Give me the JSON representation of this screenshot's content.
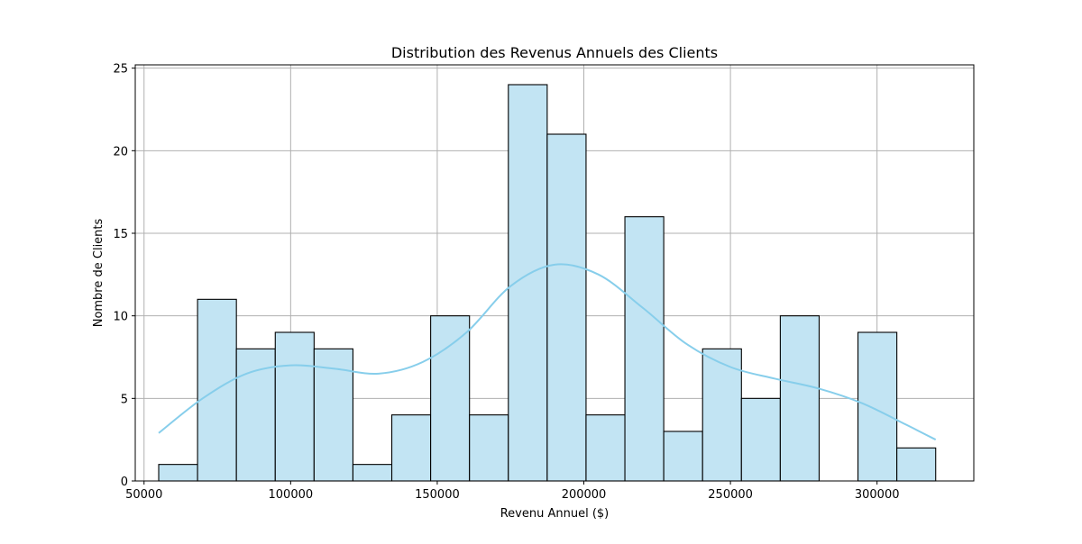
{
  "chart_data": {
    "type": "bar",
    "subtype": "histogram",
    "title": "Distribution des Revenus Annuels des Clients",
    "xlabel": "Revenu Annuel ($)",
    "ylabel": "Nombre de Clients",
    "xlim": [
      47000,
      333000
    ],
    "ylim": [
      0,
      25.2
    ],
    "xticks": [
      50000,
      100000,
      150000,
      200000,
      250000,
      300000
    ],
    "yticks": [
      0,
      5,
      10,
      15,
      20,
      25
    ],
    "grid": true,
    "legend": "none",
    "bin_start": 55000,
    "bin_width": 13250,
    "bins": [
      {
        "from": 55000,
        "to": 68250,
        "count": 1
      },
      {
        "from": 68250,
        "to": 81500,
        "count": 11
      },
      {
        "from": 81500,
        "to": 94750,
        "count": 8
      },
      {
        "from": 94750,
        "to": 108000,
        "count": 9
      },
      {
        "from": 108000,
        "to": 121250,
        "count": 8
      },
      {
        "from": 121250,
        "to": 134500,
        "count": 1
      },
      {
        "from": 134500,
        "to": 147750,
        "count": 4
      },
      {
        "from": 147750,
        "to": 161000,
        "count": 10
      },
      {
        "from": 161000,
        "to": 174250,
        "count": 4
      },
      {
        "from": 174250,
        "to": 187500,
        "count": 24
      },
      {
        "from": 187500,
        "to": 200750,
        "count": 21
      },
      {
        "from": 200750,
        "to": 214000,
        "count": 4
      },
      {
        "from": 214000,
        "to": 227250,
        "count": 16
      },
      {
        "from": 227250,
        "to": 240500,
        "count": 3
      },
      {
        "from": 240500,
        "to": 253750,
        "count": 8
      },
      {
        "from": 253750,
        "to": 267000,
        "count": 5
      },
      {
        "from": 267000,
        "to": 280250,
        "count": 10
      },
      {
        "from": 280250,
        "to": 293500,
        "count": 0
      },
      {
        "from": 293500,
        "to": 306750,
        "count": 9
      },
      {
        "from": 306750,
        "to": 320000,
        "count": 2
      }
    ],
    "kde_curve": {
      "x": [
        55000,
        70000,
        85000,
        100000,
        115000,
        130000,
        145000,
        160000,
        175000,
        190000,
        205000,
        220000,
        235000,
        250000,
        265000,
        280000,
        295000,
        310000,
        320000
      ],
      "y": [
        2.9,
        5.0,
        6.5,
        7.0,
        6.8,
        6.5,
        7.2,
        9.0,
        11.8,
        13.1,
        12.5,
        10.5,
        8.3,
        6.9,
        6.2,
        5.6,
        4.7,
        3.4,
        2.5
      ]
    },
    "colors": {
      "bar_fill": "#c2e4f3",
      "bar_edge": "#000000",
      "kde_line": "#87ceeb",
      "grid": "#b0b0b0"
    }
  }
}
